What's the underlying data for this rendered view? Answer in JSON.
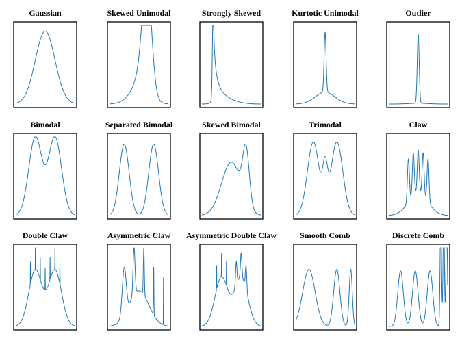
{
  "figure": {
    "line_color": "#1f77b4",
    "frame_color": "#000000",
    "background": "#ffffff"
  },
  "chart_data": [
    {
      "type": "line",
      "title": "Gaussian",
      "xlim": [
        -3,
        3
      ],
      "ylim": [
        0,
        0.43
      ],
      "axes_ticks": false,
      "grid": false,
      "components": [
        [
          1,
          0,
          1
        ]
      ]
    },
    {
      "type": "line",
      "title": "Skewed Unimodal",
      "xlim": [
        -3,
        3
      ],
      "ylim": [
        0,
        0.43
      ],
      "axes_ticks": false,
      "grid": false,
      "components": [
        [
          0.2,
          0,
          1
        ],
        [
          0.2,
          0.5,
          0.6667
        ],
        [
          0.6,
          0.8333,
          0.4444
        ]
      ]
    },
    {
      "type": "line",
      "title": "Strongly Skewed",
      "xlim": [
        -3,
        3
      ],
      "ylim": [
        0,
        1.55
      ],
      "axes_ticks": false,
      "grid": false,
      "components": [
        [
          0.125,
          0,
          1
        ],
        [
          0.125,
          -0.6667,
          0.6667
        ],
        [
          0.125,
          -1.1111,
          0.4444
        ],
        [
          0.125,
          -1.4074,
          0.2963
        ],
        [
          0.125,
          -1.6049,
          0.1975
        ],
        [
          0.125,
          -1.7366,
          0.1317
        ],
        [
          0.125,
          -1.8244,
          0.0878
        ],
        [
          0.125,
          -1.8829,
          0.0585
        ]
      ]
    },
    {
      "type": "line",
      "title": "Kurtotic Unimodal",
      "xlim": [
        -3,
        3
      ],
      "ylim": [
        0,
        1.75
      ],
      "axes_ticks": false,
      "grid": false,
      "components": [
        [
          0.6667,
          0,
          1
        ],
        [
          0.3333,
          0,
          0.1
        ]
      ]
    },
    {
      "type": "line",
      "title": "Outlier",
      "xlim": [
        -3,
        3
      ],
      "ylim": [
        0,
        4.1
      ],
      "axes_ticks": false,
      "grid": false,
      "components": [
        [
          0.1,
          0,
          1
        ],
        [
          0.9,
          0,
          0.1
        ]
      ]
    },
    {
      "type": "line",
      "title": "Bimodal",
      "xlim": [
        -3,
        3
      ],
      "ylim": [
        0,
        0.3
      ],
      "axes_ticks": false,
      "grid": false,
      "components": [
        [
          0.5,
          -1,
          0.6667
        ],
        [
          0.5,
          1,
          0.6667
        ]
      ]
    },
    {
      "type": "line",
      "title": "Separated Bimodal",
      "xlim": [
        -3,
        3
      ],
      "ylim": [
        0,
        0.44
      ],
      "axes_ticks": false,
      "grid": false,
      "components": [
        [
          0.5,
          -1.5,
          0.5
        ],
        [
          0.5,
          1.5,
          0.5
        ]
      ]
    },
    {
      "type": "line",
      "title": "Skewed Bimodal",
      "xlim": [
        -3,
        3
      ],
      "ylim": [
        0,
        0.44
      ],
      "axes_ticks": false,
      "grid": false,
      "components": [
        [
          0.75,
          0,
          1
        ],
        [
          0.25,
          1.5,
          0.3333
        ]
      ]
    },
    {
      "type": "line",
      "title": "Trimodal",
      "xlim": [
        -3,
        3
      ],
      "ylim": [
        0,
        0.32
      ],
      "axes_ticks": false,
      "grid": false,
      "components": [
        [
          0.45,
          -1.2,
          0.6
        ],
        [
          0.45,
          1.2,
          0.6
        ],
        [
          0.1,
          0,
          0.25
        ]
      ]
    },
    {
      "type": "line",
      "title": "Claw",
      "xlim": [
        -3,
        3
      ],
      "ylim": [
        0,
        0.72
      ],
      "axes_ticks": false,
      "grid": false,
      "components": [
        [
          0.5,
          0,
          1
        ],
        [
          0.1,
          -1,
          0.1
        ],
        [
          0.1,
          -0.5,
          0.1
        ],
        [
          0.1,
          0,
          0.1
        ],
        [
          0.1,
          0.5,
          0.1
        ],
        [
          0.1,
          1,
          0.1
        ]
      ]
    },
    {
      "type": "line",
      "title": "Double Claw",
      "xlim": [
        -3,
        3
      ],
      "ylim": [
        0,
        0.41
      ],
      "axes_ticks": false,
      "grid": false,
      "components": [
        [
          0.49,
          -1,
          0.6667
        ],
        [
          0.49,
          1,
          0.6667
        ],
        [
          0.002857,
          -1.5,
          0.01
        ],
        [
          0.002857,
          -1,
          0.01
        ],
        [
          0.002857,
          -0.5,
          0.01
        ],
        [
          0.002857,
          0,
          0.01
        ],
        [
          0.002857,
          0.5,
          0.01
        ],
        [
          0.002857,
          1,
          0.01
        ],
        [
          0.002857,
          1.5,
          0.01
        ]
      ]
    },
    {
      "type": "line",
      "title": "Asymmetric Claw",
      "xlim": [
        -3,
        3
      ],
      "ylim": [
        0,
        0.44
      ],
      "axes_ticks": false,
      "grid": false,
      "components": [
        [
          0.5,
          0,
          1
        ],
        [
          0.1333,
          -1.5,
          0.2
        ],
        [
          0.0667,
          -0.5,
          0.1
        ],
        [
          0.0333,
          0.5,
          0.05
        ],
        [
          0.0167,
          1.5,
          0.025
        ],
        [
          0.0083,
          2.5,
          0.0125
        ]
      ]
    },
    {
      "type": "line",
      "title": "Asymmetric Double Claw",
      "xlim": [
        -3,
        3
      ],
      "ylim": [
        0,
        0.44
      ],
      "axes_ticks": false,
      "grid": false,
      "components": [
        [
          0.46,
          -1,
          0.6667
        ],
        [
          0.46,
          1,
          0.6667
        ],
        [
          0.003333,
          -0.5,
          0.01
        ],
        [
          0.003333,
          -1,
          0.01
        ],
        [
          0.003333,
          -1.5,
          0.01
        ],
        [
          0.023333,
          0.5,
          0.07
        ],
        [
          0.023333,
          1,
          0.07
        ],
        [
          0.023333,
          1.5,
          0.07
        ]
      ]
    },
    {
      "type": "line",
      "title": "Smooth Comb",
      "xlim": [
        -3,
        3
      ],
      "ylim": [
        0,
        0.44
      ],
      "axes_ticks": false,
      "grid": false,
      "components": [
        [
          0.5079,
          -1.6508,
          0.6349
        ],
        [
          0.254,
          1.1905,
          0.3175
        ],
        [
          0.127,
          2.6095,
          0.1587
        ],
        [
          0.0635,
          3.319,
          0.0794
        ],
        [
          0.0317,
          3.6738,
          0.0397
        ],
        [
          0.0159,
          3.8512,
          0.0198
        ]
      ]
    },
    {
      "type": "line",
      "title": "Discrete Comb",
      "xlim": [
        -3,
        3
      ],
      "ylim": [
        0,
        0.44
      ],
      "axes_ticks": false,
      "grid": false,
      "components": [
        [
          0.2222,
          -1.8,
          0.2857
        ],
        [
          0.2222,
          -0.3,
          0.2857
        ],
        [
          0.2222,
          1.2,
          0.2857
        ],
        [
          0.1111,
          2.3,
          0.0714
        ],
        [
          0.1111,
          2.6,
          0.0714
        ],
        [
          0.1111,
          2.9,
          0.0714
        ]
      ]
    }
  ]
}
